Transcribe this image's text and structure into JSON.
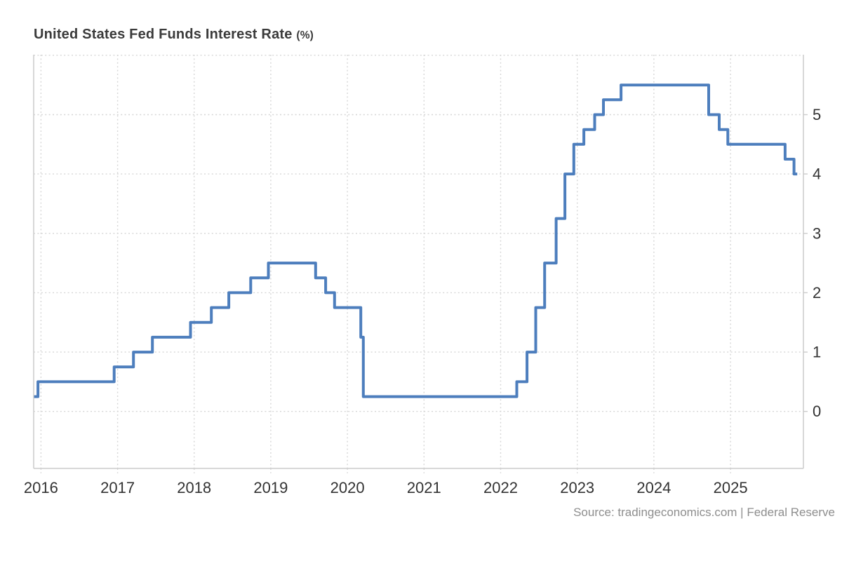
{
  "title": {
    "main": "United States Fed Funds Interest Rate",
    "unit": "(%)"
  },
  "source": "Source: tradingeconomics.com | Federal Reserve",
  "colors": {
    "line": "#4d7ebd",
    "grid": "#d6d6d6",
    "axis": "#cccccc",
    "tick_label": "#333333",
    "title": "#3b3b3b",
    "source": "#8e8e8e",
    "background": "#ffffff"
  },
  "chart_data": {
    "type": "line",
    "step_mode": "after",
    "title": "United States Fed Funds Interest Rate (%)",
    "xlabel": "",
    "ylabel": "",
    "legend": false,
    "grid": true,
    "y_axis_side": "right",
    "x_ticks": [
      2016,
      2017,
      2018,
      2019,
      2020,
      2021,
      2022,
      2023,
      2024,
      2025
    ],
    "x_tick_labels": [
      "2016",
      "2017",
      "2018",
      "2019",
      "2020",
      "2021",
      "2022",
      "2023",
      "2024",
      "2025"
    ],
    "y_ticks": [
      0,
      1,
      2,
      3,
      4,
      5
    ],
    "y_tick_labels": [
      "0",
      "1",
      "2",
      "3",
      "4",
      "5"
    ],
    "y_grid": [
      0,
      1,
      2,
      3,
      4,
      5,
      6
    ],
    "x_range": [
      2015.905,
      2025.952
    ],
    "y_range": [
      -0.96,
      6.01
    ],
    "series": [
      {
        "name": "Fed Funds Interest Rate",
        "unit": "%",
        "points": [
          [
            "2015-11-28",
            0.25
          ],
          [
            "2015-12-16",
            0.5
          ],
          [
            "2016-12-14",
            0.75
          ],
          [
            "2017-03-15",
            1.0
          ],
          [
            "2017-06-14",
            1.25
          ],
          [
            "2017-12-13",
            1.5
          ],
          [
            "2018-03-21",
            1.75
          ],
          [
            "2018-06-13",
            2.0
          ],
          [
            "2018-09-26",
            2.25
          ],
          [
            "2018-12-19",
            2.5
          ],
          [
            "2019-07-31",
            2.25
          ],
          [
            "2019-09-18",
            2.0
          ],
          [
            "2019-10-30",
            1.75
          ],
          [
            "2020-03-03",
            1.25
          ],
          [
            "2020-03-15",
            0.25
          ],
          [
            "2022-03-16",
            0.5
          ],
          [
            "2022-05-04",
            1.0
          ],
          [
            "2022-06-15",
            1.75
          ],
          [
            "2022-07-27",
            2.5
          ],
          [
            "2022-09-21",
            3.25
          ],
          [
            "2022-11-02",
            4.0
          ],
          [
            "2022-12-14",
            4.5
          ],
          [
            "2023-02-01",
            4.75
          ],
          [
            "2023-03-22",
            5.0
          ],
          [
            "2023-05-03",
            5.25
          ],
          [
            "2023-07-26",
            5.5
          ],
          [
            "2024-09-18",
            5.0
          ],
          [
            "2024-11-07",
            4.75
          ],
          [
            "2024-12-18",
            4.5
          ],
          [
            "2025-09-17",
            4.25
          ],
          [
            "2025-10-29",
            4.0
          ],
          [
            "2025-11-14",
            4.0
          ]
        ]
      }
    ]
  }
}
